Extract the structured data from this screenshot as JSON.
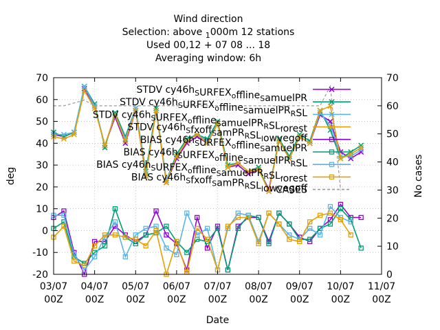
{
  "chart_data": {
    "type": "line",
    "title_lines": [
      "Wind direction",
      "Selection: above ",
      "Used  00,12  + 07 08 ... 18",
      "Averaging window:  6h"
    ],
    "title_sub_1000m": "1",
    "title_main_000m": "000m",
    "title_stations": "12 stations",
    "xlabel": "Date",
    "ylabel": "deg",
    "y2label": "No cases",
    "ylim": [
      -20,
      70
    ],
    "y2lim": [
      0,
      70
    ],
    "y_ticks": [
      "-20",
      "-10",
      "0",
      "10",
      "20",
      "30",
      "40",
      "50",
      "60",
      "70"
    ],
    "y2_ticks": [
      "0",
      "10",
      "20",
      "30",
      "40",
      "50",
      "60",
      "70"
    ],
    "x_ticks": [
      {
        "top": "03/07",
        "bottom": "00Z"
      },
      {
        "top": "04/07",
        "bottom": "00Z"
      },
      {
        "top": "05/07",
        "bottom": "00Z"
      },
      {
        "top": "06/07",
        "bottom": "00Z"
      },
      {
        "top": "07/07",
        "bottom": "00Z"
      },
      {
        "top": "08/07",
        "bottom": "00Z"
      },
      {
        "top": "09/07",
        "bottom": "00Z"
      },
      {
        "top": "10/07",
        "bottom": "00Z"
      },
      {
        "top": "11/07",
        "bottom": "00Z"
      }
    ],
    "x": [
      0.0,
      0.25,
      0.5,
      0.75,
      1.0,
      1.25,
      1.5,
      1.75,
      2.0,
      2.25,
      2.5,
      2.75,
      3.0,
      3.25,
      3.5,
      3.75,
      4.0,
      4.25,
      4.5,
      4.75,
      5.0,
      5.25,
      5.5,
      5.75,
      6.0,
      6.25,
      6.5,
      6.75,
      7.0,
      7.25,
      7.5,
      7.75
    ],
    "legend": [
      {
        "label": "STDV cy46h_S URFEX_o ffline_S amuelPR",
        "color": "#9400d3",
        "marker": "x",
        "dash": false
      },
      {
        "label": "STDV cy46h_S URFEX_o ffline_S amuelPR_R SL",
        "color": "#009e73",
        "marker": "x",
        "dash": false
      },
      {
        "label": "STDV cy46h_S URFEX_o ffline_S amuelPR_R SL_f orest",
        "color": "#56b4e9",
        "marker": "x",
        "dash": false
      },
      {
        "label": "STDV cy46h_S fxoff_S amPR_R SL_l owvegoff",
        "color": "#e69f00",
        "marker": "x",
        "dash": false
      },
      {
        "label": "BIAS cy46h_S URFEX_o ffline_S amuelPR",
        "color": "#9400d3",
        "marker": "square",
        "dash": false
      },
      {
        "label": "BIAS cy46h_S URFEX_o ffline_S amuelPR_R SL",
        "color": "#009e73",
        "marker": "square",
        "dash": false
      },
      {
        "label": "BIAS cy46h_S URFEX_o ffline_S amuelPR_R SL_f orest",
        "color": "#56b4e9",
        "marker": "square",
        "dash": false
      },
      {
        "label": "BIAS cy46h_S fxoff_S amPR_R SL_l owvegoff",
        "color": "#e69f00",
        "marker": "square",
        "dash": false
      },
      {
        "label": "CASES",
        "color": "#999999",
        "marker": "none",
        "dash": true
      }
    ],
    "series": [
      {
        "name": "STDV cy46h_S URFEX_o ffline_S amuelPR",
        "color": "#9400d3",
        "marker": "x",
        "axis": "y",
        "values": [
          44,
          43,
          45,
          65,
          57,
          39,
          52,
          40,
          55,
          25,
          55,
          22,
          33,
          40,
          43,
          40,
          49,
          29,
          30,
          26,
          28,
          19,
          41,
          33,
          43,
          40,
          53,
          50,
          36,
          33,
          36,
          null
        ]
      },
      {
        "name": "STDV cy46h_S URFEX_o ffline_S amuelPR_R SL",
        "color": "#009e73",
        "marker": "x",
        "axis": "y",
        "values": [
          45,
          43,
          45,
          66,
          58,
          38,
          54,
          43,
          56,
          27,
          56,
          23,
          35,
          42,
          44,
          42,
          50,
          30,
          31,
          27,
          29,
          18,
          42,
          34,
          44,
          41,
          55,
          46,
          33,
          36,
          39,
          null
        ]
      },
      {
        "name": "STDV cy46h_S URFEX_o ffline_S amuelPR_R SL_f orest",
        "color": "#56b4e9",
        "marker": "x",
        "axis": "y",
        "values": [
          44,
          44,
          45,
          66,
          57,
          39,
          53,
          42,
          56,
          26,
          55,
          23,
          34,
          41,
          44,
          41,
          49,
          29,
          31,
          27,
          28,
          18,
          41,
          33,
          43,
          40,
          54,
          48,
          34,
          34,
          37,
          null
        ]
      },
      {
        "name": "STDV cy46h_S fxoff_S amPR_R SL_l owvegoff",
        "color": "#e69f00",
        "marker": "x",
        "axis": "y",
        "values": [
          43,
          42,
          44,
          64,
          56,
          39,
          53,
          41,
          55,
          25,
          55,
          22,
          34,
          41,
          44,
          40,
          49,
          29,
          31,
          27,
          28,
          18,
          41,
          33,
          43,
          40,
          55,
          57,
          33,
          35,
          38,
          null
        ]
      },
      {
        "name": "BIAS cy46h_S URFEX_o ffline_S amuelPR",
        "color": "#9400d3",
        "marker": "square",
        "axis": "y",
        "values": [
          6,
          9,
          -10,
          -20,
          -5,
          -5,
          2,
          -2,
          -5,
          -2,
          9,
          -2,
          -6,
          -18,
          6,
          -8,
          2,
          -18,
          2,
          6,
          6,
          -5,
          8,
          3,
          -3,
          -5,
          1,
          5,
          12,
          6,
          6,
          null
        ]
      },
      {
        "name": "BIAS cy46h_S URFEX_o ffline_S amuelPR_R SL",
        "color": "#009e73",
        "marker": "square",
        "axis": "y",
        "values": [
          1,
          4,
          -12,
          -15,
          -10,
          -7,
          10,
          -3,
          -6,
          -2,
          -1,
          2,
          -5,
          -10,
          -4,
          -5,
          1,
          -18,
          1,
          7,
          6,
          -6,
          8,
          3,
          -4,
          -4,
          1,
          3,
          10,
          5,
          -8,
          null
        ]
      },
      {
        "name": "BIAS cy46h_S URFEX_o ffline_S amuelPR_R SL_f orest",
        "color": "#56b4e9",
        "marker": "square",
        "axis": "y",
        "values": [
          7,
          7,
          -11,
          -18,
          -12,
          -3,
          4,
          -12,
          -2,
          1,
          2,
          -8,
          -11,
          8,
          -2,
          1,
          -18,
          1,
          8,
          7,
          -5,
          8,
          3,
          -2,
          -4,
          1,
          -2,
          11,
          6,
          4,
          null,
          null
        ]
      },
      {
        "name": "BIAS cy46h_S fxoff_S amPR_R SL_l owvegoff",
        "color": "#e69f00",
        "marker": "square",
        "axis": "y",
        "values": [
          -3,
          2,
          -14,
          -16,
          -7,
          -2,
          -2,
          -3,
          -4,
          -7,
          0,
          -20,
          -5,
          -19,
          1,
          -4,
          -18,
          2,
          6,
          6,
          -6,
          8,
          3,
          -4,
          -5,
          4,
          7,
          8,
          5,
          -2,
          null,
          null
        ]
      },
      {
        "name": "CASES",
        "color": "#999999",
        "marker": "none",
        "axis": "y2",
        "dash": true,
        "values": [
          60,
          60,
          61,
          62,
          60,
          60,
          60,
          60,
          60,
          60,
          60,
          60,
          60,
          60,
          60,
          60,
          60,
          60,
          60,
          60,
          60,
          60,
          60,
          60,
          60,
          60,
          60,
          67,
          30,
          null,
          null,
          null
        ]
      }
    ]
  }
}
